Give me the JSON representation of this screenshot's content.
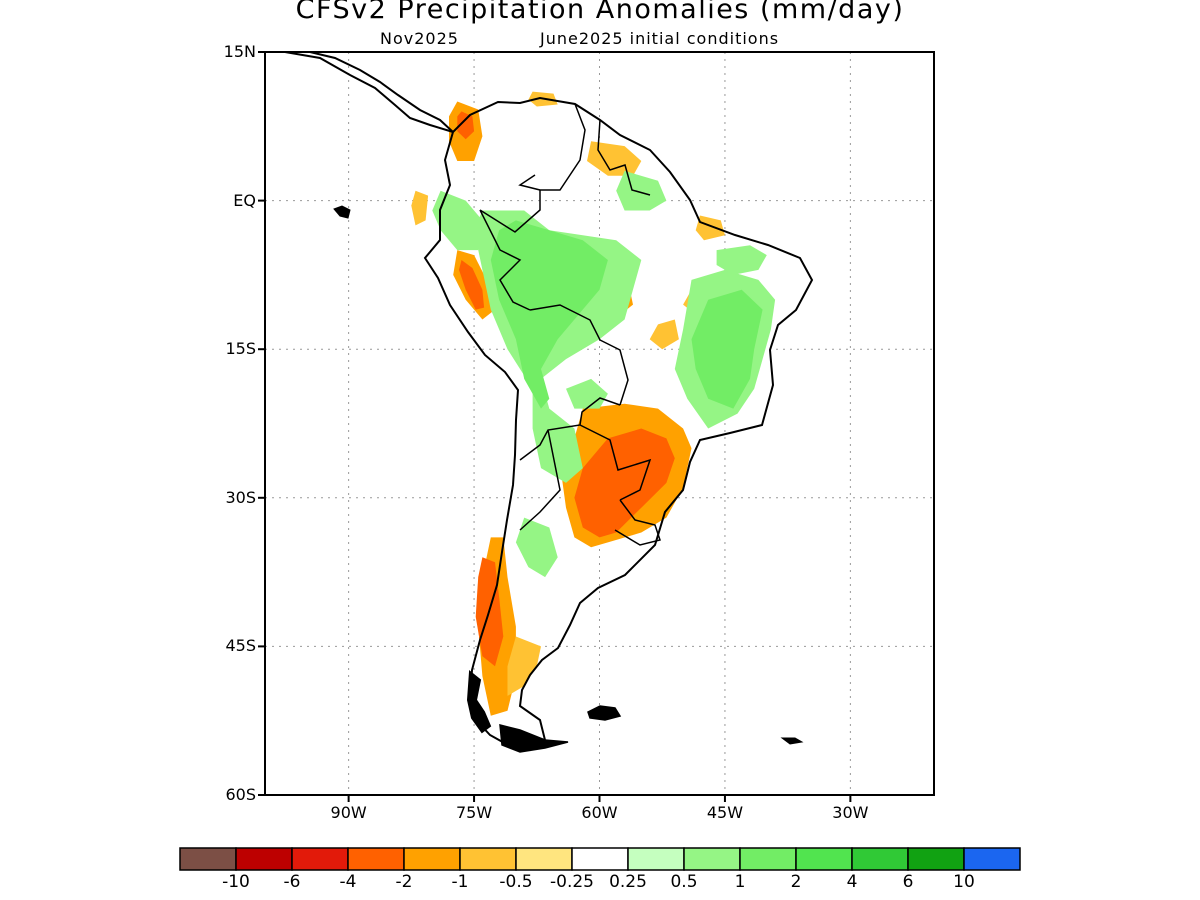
{
  "title": "CFSv2 Precipitation Anomalies (mm/day)",
  "subtitle_left": "Nov2025",
  "subtitle_right": "June2025 initial conditions",
  "map": {
    "lon_range": [
      -98,
      -18
    ],
    "lat_range": [
      -60,
      15
    ],
    "lat_ticks": [
      {
        "value": 15,
        "label": "15N"
      },
      {
        "value": 0,
        "label": "EQ"
      },
      {
        "value": -15,
        "label": "15S"
      },
      {
        "value": -30,
        "label": "30S"
      },
      {
        "value": -45,
        "label": "45S"
      },
      {
        "value": -60,
        "label": "60S"
      }
    ],
    "lon_ticks": [
      {
        "value": -88,
        "label": "90W"
      },
      {
        "value": -73,
        "label": "75W"
      },
      {
        "value": -58,
        "label": "60W"
      },
      {
        "value": -43,
        "label": "45W"
      },
      {
        "value": -28,
        "label": "30W"
      }
    ],
    "grid": "dotted",
    "coastline_color": "#000000",
    "border_color": "#000000"
  },
  "anomaly_regions": [
    {
      "name": "southern-brazil-paraguay-dry",
      "category": -1,
      "points": [
        [
          -60,
          -21
        ],
        [
          -55,
          -20.5
        ],
        [
          -51,
          -21
        ],
        [
          -48,
          -23
        ],
        [
          -47,
          -25
        ],
        [
          -48,
          -29
        ],
        [
          -50,
          -32
        ],
        [
          -53,
          -33.5
        ],
        [
          -57,
          -34.5
        ],
        [
          -59,
          -35
        ],
        [
          -61,
          -34
        ],
        [
          -62,
          -31
        ],
        [
          -62.5,
          -28
        ],
        [
          -61,
          -24
        ],
        [
          -60,
          -21
        ]
      ]
    },
    {
      "name": "southern-brazil-core-dry",
      "category": -2,
      "points": [
        [
          -57,
          -24
        ],
        [
          -53,
          -23
        ],
        [
          -50,
          -24
        ],
        [
          -49,
          -26
        ],
        [
          -50,
          -28.5
        ],
        [
          -53,
          -31
        ],
        [
          -56,
          -33.5
        ],
        [
          -58,
          -34
        ],
        [
          -60,
          -33
        ],
        [
          -61,
          -30
        ],
        [
          -60,
          -27
        ],
        [
          -58,
          -25
        ],
        [
          -57,
          -24
        ]
      ]
    },
    {
      "name": "central-andes-chile-dry",
      "category": -1,
      "points": [
        [
          -71,
          -34
        ],
        [
          -69.5,
          -34
        ],
        [
          -69,
          -38
        ],
        [
          -68,
          -43
        ],
        [
          -68,
          -48
        ],
        [
          -69,
          -51.5
        ],
        [
          -71,
          -52
        ],
        [
          -72,
          -48
        ],
        [
          -72.5,
          -43
        ],
        [
          -72,
          -38
        ],
        [
          -71,
          -34
        ]
      ]
    },
    {
      "name": "chile-core-dry",
      "category": -2,
      "points": [
        [
          -72,
          -36
        ],
        [
          -70.5,
          -36.5
        ],
        [
          -70,
          -40
        ],
        [
          -69.5,
          -44
        ],
        [
          -70.5,
          -47
        ],
        [
          -72,
          -46
        ],
        [
          -72.8,
          -42
        ],
        [
          -72.5,
          -38
        ],
        [
          -72,
          -36
        ]
      ]
    },
    {
      "name": "peru-andes-dry",
      "category": -1,
      "points": [
        [
          -75,
          -5
        ],
        [
          -73,
          -5.5
        ],
        [
          -71.5,
          -8
        ],
        [
          -70.5,
          -11
        ],
        [
          -72,
          -12
        ],
        [
          -74,
          -10
        ],
        [
          -75.5,
          -7.5
        ],
        [
          -75,
          -5
        ]
      ]
    },
    {
      "name": "peru-andes-core-dry",
      "category": -2,
      "points": [
        [
          -74.5,
          -6
        ],
        [
          -73.2,
          -6.8
        ],
        [
          -72,
          -9
        ],
        [
          -71.8,
          -10.8
        ],
        [
          -72.8,
          -11
        ],
        [
          -74,
          -9
        ],
        [
          -74.8,
          -7
        ],
        [
          -74.5,
          -6
        ]
      ]
    },
    {
      "name": "colombia-dry",
      "category": -1,
      "points": [
        [
          -75,
          10
        ],
        [
          -72.5,
          9.2
        ],
        [
          -72,
          6.5
        ],
        [
          -73,
          4
        ],
        [
          -75,
          4
        ],
        [
          -76,
          6
        ],
        [
          -76,
          8.5
        ],
        [
          -75,
          10
        ]
      ]
    },
    {
      "name": "colombia-core-dry",
      "category": -2,
      "points": [
        [
          -74.5,
          9
        ],
        [
          -73.2,
          8.5
        ],
        [
          -73,
          7
        ],
        [
          -74,
          6.2
        ],
        [
          -75,
          7
        ],
        [
          -75,
          8.5
        ],
        [
          -74.5,
          9
        ]
      ]
    },
    {
      "name": "patagonia-east-dry",
      "category": -0.5,
      "points": [
        [
          -68,
          -44
        ],
        [
          -65,
          -45
        ],
        [
          -65.5,
          -47
        ],
        [
          -67,
          -49
        ],
        [
          -69,
          -50
        ],
        [
          -69,
          -47
        ],
        [
          -68,
          -44
        ]
      ]
    },
    {
      "name": "ecuador-dry",
      "category": -0.5,
      "points": [
        [
          -80,
          1
        ],
        [
          -78.5,
          0.5
        ],
        [
          -78.8,
          -2
        ],
        [
          -80,
          -2.5
        ],
        [
          -80.5,
          -0.5
        ],
        [
          -80,
          1
        ]
      ]
    },
    {
      "name": "guianas-dry",
      "category": -0.5,
      "points": [
        [
          -59,
          6
        ],
        [
          -55,
          5.5
        ],
        [
          -53,
          4
        ],
        [
          -54,
          2.5
        ],
        [
          -57,
          2.5
        ],
        [
          -59.5,
          4
        ],
        [
          -59,
          6
        ]
      ]
    },
    {
      "name": "ne-brazil-dry-1",
      "category": -0.5,
      "points": [
        [
          -47,
          -9
        ],
        [
          -45.5,
          -10
        ],
        [
          -46.5,
          -11.5
        ],
        [
          -48,
          -10.5
        ],
        [
          -47,
          -9
        ]
      ]
    },
    {
      "name": "central-brazil-dry-1",
      "category": -1,
      "points": [
        [
          -56,
          -9
        ],
        [
          -54.5,
          -8.5
        ],
        [
          -54,
          -10.5
        ],
        [
          -55.5,
          -11.5
        ],
        [
          -56.5,
          -10.5
        ],
        [
          -56,
          -9
        ]
      ]
    },
    {
      "name": "central-brazil-dry-2",
      "category": -0.5,
      "points": [
        [
          -51,
          -12.5
        ],
        [
          -49,
          -12
        ],
        [
          -48.5,
          -14
        ],
        [
          -50.5,
          -15
        ],
        [
          -52,
          -14
        ],
        [
          -51,
          -12.5
        ]
      ]
    },
    {
      "name": "maranhao-dry",
      "category": -0.5,
      "points": [
        [
          -46,
          -1.5
        ],
        [
          -43.5,
          -2
        ],
        [
          -43,
          -3.5
        ],
        [
          -45.5,
          -4
        ],
        [
          -46.5,
          -3
        ],
        [
          -46,
          -1.5
        ]
      ]
    },
    {
      "name": "venezuela-dry",
      "category": -0.5,
      "points": [
        [
          -66,
          11
        ],
        [
          -63.5,
          10.8
        ],
        [
          -63,
          9.7
        ],
        [
          -65.5,
          9.5
        ],
        [
          -66.5,
          10.2
        ],
        [
          -66,
          11
        ]
      ]
    },
    {
      "name": "amazon-wet",
      "category": 0.5,
      "points": [
        [
          -72,
          -1
        ],
        [
          -67,
          -1
        ],
        [
          -64,
          -3
        ],
        [
          -60,
          -3.5
        ],
        [
          -56,
          -4
        ],
        [
          -53,
          -6
        ],
        [
          -55,
          -12
        ],
        [
          -58,
          -14
        ],
        [
          -62,
          -16
        ],
        [
          -65,
          -18
        ],
        [
          -64,
          -21
        ],
        [
          -61,
          -23
        ],
        [
          -60,
          -27
        ],
        [
          -62,
          -28.5
        ],
        [
          -65,
          -27
        ],
        [
          -66,
          -23
        ],
        [
          -66,
          -19
        ],
        [
          -69,
          -15
        ],
        [
          -71,
          -11
        ],
        [
          -72,
          -7
        ],
        [
          -73,
          -3
        ],
        [
          -72,
          -1
        ]
      ]
    },
    {
      "name": "amazon-core-wet",
      "category": 1,
      "points": [
        [
          -68,
          -2
        ],
        [
          -64,
          -3
        ],
        [
          -60,
          -4
        ],
        [
          -57,
          -6
        ],
        [
          -58,
          -9
        ],
        [
          -61,
          -12
        ],
        [
          -63,
          -14
        ],
        [
          -65,
          -17
        ],
        [
          -64,
          -20
        ],
        [
          -65,
          -21
        ],
        [
          -67,
          -18
        ],
        [
          -68,
          -14
        ],
        [
          -70,
          -10
        ],
        [
          -71,
          -6
        ],
        [
          -70,
          -3
        ],
        [
          -68,
          -2
        ]
      ]
    },
    {
      "name": "east-brazil-wet",
      "category": 0.5,
      "points": [
        [
          -47,
          -8
        ],
        [
          -43,
          -7
        ],
        [
          -39,
          -8
        ],
        [
          -37,
          -10
        ],
        [
          -37.5,
          -13
        ],
        [
          -38.5,
          -16
        ],
        [
          -39.5,
          -19
        ],
        [
          -41.5,
          -21.5
        ],
        [
          -45,
          -23
        ],
        [
          -47.5,
          -20
        ],
        [
          -49,
          -17
        ],
        [
          -48,
          -13
        ],
        [
          -47,
          -8
        ]
      ]
    },
    {
      "name": "east-brazil-core-wet",
      "category": 1,
      "points": [
        [
          -45,
          -10
        ],
        [
          -41,
          -9
        ],
        [
          -38.5,
          -11
        ],
        [
          -39.5,
          -15
        ],
        [
          -40,
          -18
        ],
        [
          -42,
          -21
        ],
        [
          -45,
          -20
        ],
        [
          -46.5,
          -17
        ],
        [
          -47,
          -14
        ],
        [
          -45,
          -10
        ]
      ]
    },
    {
      "name": "northeast-brazil-wet",
      "category": 0.5,
      "points": [
        [
          -44,
          -5
        ],
        [
          -40,
          -4.5
        ],
        [
          -38,
          -5.5
        ],
        [
          -39,
          -7
        ],
        [
          -42,
          -7.5
        ],
        [
          -44,
          -6.5
        ],
        [
          -44,
          -5
        ]
      ]
    },
    {
      "name": "north-brazil-wet",
      "category": 0.5,
      "points": [
        [
          -55,
          3
        ],
        [
          -51,
          2
        ],
        [
          -50,
          0
        ],
        [
          -52,
          -1
        ],
        [
          -55,
          -1
        ],
        [
          -56,
          1
        ],
        [
          -55,
          3
        ]
      ]
    },
    {
      "name": "argentina-wet",
      "category": 0.5,
      "points": [
        [
          -67,
          -32
        ],
        [
          -64,
          -33
        ],
        [
          -63,
          -36
        ],
        [
          -64.5,
          -38
        ],
        [
          -66.5,
          -37
        ],
        [
          -68,
          -34.5
        ],
        [
          -67,
          -32
        ]
      ]
    },
    {
      "name": "ecuador-peru-wet",
      "category": 0.5,
      "points": [
        [
          -77,
          1
        ],
        [
          -74,
          0
        ],
        [
          -72,
          -2
        ],
        [
          -72.5,
          -5
        ],
        [
          -75,
          -5
        ],
        [
          -77,
          -3
        ],
        [
          -78,
          -1
        ],
        [
          -77,
          1
        ]
      ]
    },
    {
      "name": "paraguay-north-wet",
      "category": 0.5,
      "points": [
        [
          -62,
          -19
        ],
        [
          -59,
          -18
        ],
        [
          -57,
          -19.5
        ],
        [
          -58,
          -21
        ],
        [
          -61,
          -21
        ],
        [
          -62,
          -19
        ]
      ]
    }
  ],
  "colorbar": {
    "colors": [
      "#7c4f45",
      "#bd0000",
      "#e21a0a",
      "#ff6100",
      "#ffa100",
      "#ffc233",
      "#ffe57f",
      "#ffffff",
      "#c5ffbf",
      "#95f585",
      "#72ed65",
      "#51e44f",
      "#30c936",
      "#11a212",
      "#1b66f0"
    ],
    "labels": [
      "-10",
      "-6",
      "-4",
      "-2",
      "-1",
      "-0.5",
      "-0.25",
      "0.25",
      "0.5",
      "1",
      "2",
      "4",
      "6",
      "10"
    ],
    "category_levels": [
      -10,
      -6,
      -4,
      -2,
      -1,
      -0.5,
      -0.25,
      0.25,
      0.5,
      1,
      2,
      4,
      6,
      10
    ]
  }
}
